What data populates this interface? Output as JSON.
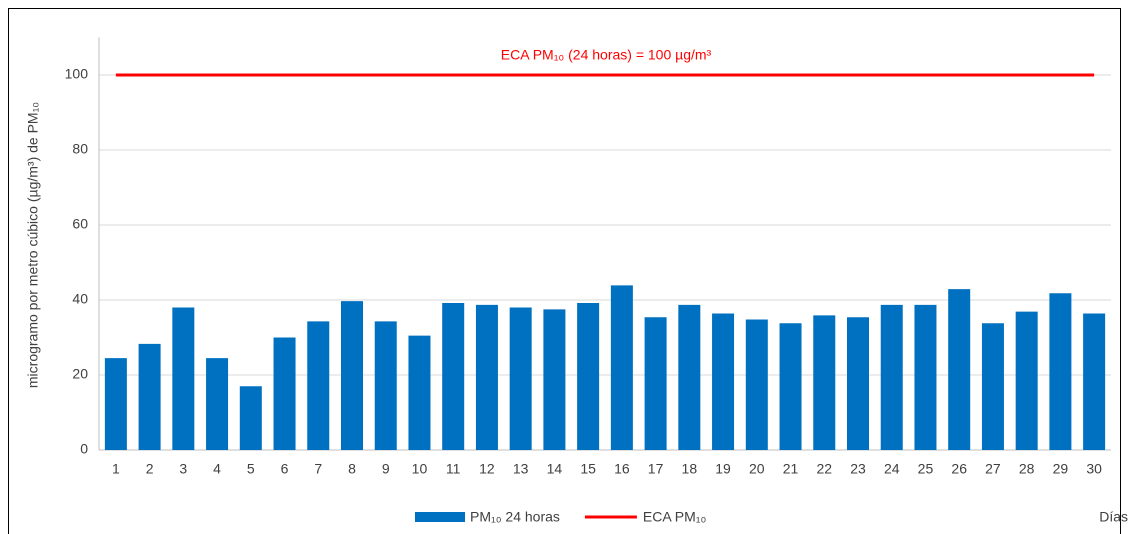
{
  "chart_data": {
    "type": "bar",
    "annotation": "ECA PM₁₀ (24 horas) = 100 µg/m³",
    "y_label": "microgramo por metro cúbico (µg/m³) de PM₁₀",
    "x_label": "Días",
    "categories": [
      "1",
      "2",
      "3",
      "4",
      "5",
      "6",
      "7",
      "8",
      "9",
      "10",
      "11",
      "12",
      "13",
      "14",
      "15",
      "16",
      "17",
      "18",
      "19",
      "20",
      "21",
      "22",
      "23",
      "24",
      "25",
      "26",
      "27",
      "28",
      "29",
      "30"
    ],
    "series": [
      {
        "name": "PM₁₀ 24 horas",
        "type": "bar",
        "color": "#0070c0",
        "values": [
          24.5,
          28.3,
          38,
          24.5,
          17,
          30,
          34.3,
          39.7,
          34.3,
          30.5,
          39.2,
          38.7,
          38,
          37.5,
          39.2,
          43.9,
          35.4,
          38.7,
          36.4,
          34.8,
          33.8,
          35.9,
          35.4,
          38.7,
          38.7,
          42.9,
          33.8,
          36.9,
          41.8,
          36.4
        ]
      },
      {
        "name": "ECA PM₁₀",
        "type": "line",
        "color": "#ff0000",
        "values": [
          100,
          100,
          100,
          100,
          100,
          100,
          100,
          100,
          100,
          100,
          100,
          100,
          100,
          100,
          100,
          100,
          100,
          100,
          100,
          100,
          100,
          100,
          100,
          100,
          100,
          100,
          100,
          100,
          100,
          100
        ]
      }
    ],
    "ylim": [
      0,
      110
    ],
    "yticks": [
      0,
      20,
      40,
      60,
      80,
      100
    ],
    "grid": true,
    "legend": "bottom"
  }
}
